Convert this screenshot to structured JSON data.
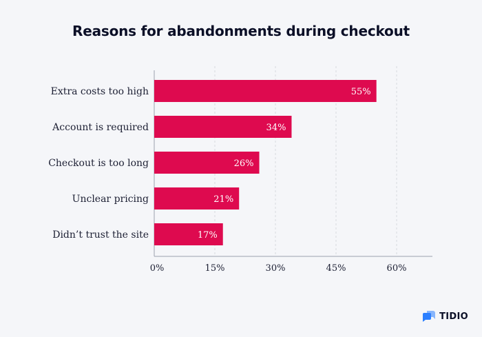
{
  "chart_data": {
    "type": "bar",
    "orientation": "horizontal",
    "title": "Reasons for abandonments during checkout",
    "categories": [
      "Extra costs too high",
      "Account is required",
      "Checkout is too long",
      "Unclear pricing",
      "Didn’t trust the site"
    ],
    "values": [
      55,
      34,
      26,
      21,
      17
    ],
    "data_labels": [
      "55%",
      "34%",
      "26%",
      "21%",
      "17%"
    ],
    "xlim": [
      0,
      60
    ],
    "xticks": [
      "0%",
      "15%",
      "30%",
      "45%",
      "60%"
    ],
    "xtick_values": [
      0,
      15,
      30,
      45,
      60
    ],
    "grid": "vertical dashed",
    "bar_color": "#de0a4f",
    "xlabel": "",
    "ylabel": ""
  },
  "brand": {
    "name": "TIDIO",
    "logo_icon": "tidio-logo-icon",
    "logo_color": "#2b7fff"
  }
}
